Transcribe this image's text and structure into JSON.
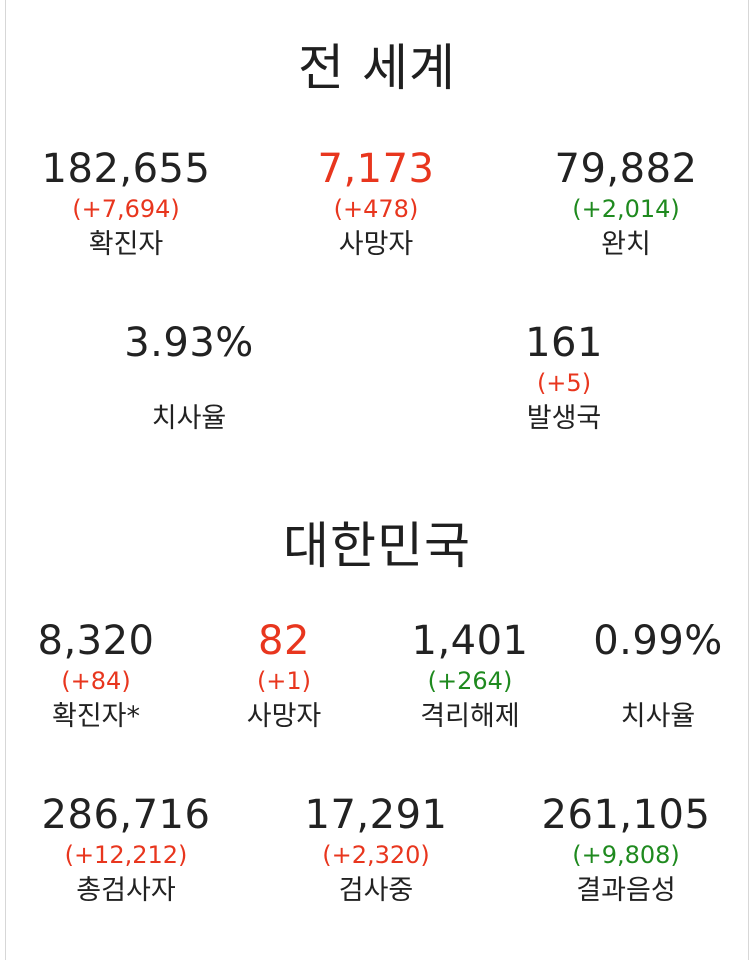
{
  "world": {
    "title": "전 세계",
    "confirmed": {
      "value": "182,655",
      "change": "(+7,694)",
      "label": "확진자"
    },
    "deaths": {
      "value": "7,173",
      "change": "(+478)",
      "label": "사망자"
    },
    "recovered": {
      "value": "79,882",
      "change": "(+2,014)",
      "label": "완치"
    },
    "fatality_rate": {
      "value": "3.93%",
      "change": "",
      "label": "치사율"
    },
    "countries": {
      "value": "161",
      "change": "(+5)",
      "label": "발생국"
    }
  },
  "korea": {
    "title": "대한민국",
    "confirmed": {
      "value": "8,320",
      "change": "(+84)",
      "label": "확진자*"
    },
    "deaths": {
      "value": "82",
      "change": "(+1)",
      "label": "사망자"
    },
    "released": {
      "value": "1,401",
      "change": "(+264)",
      "label": "격리해제"
    },
    "fatality_rate": {
      "value": "0.99%",
      "change": "",
      "label": "치사율"
    },
    "total_tested": {
      "value": "286,716",
      "change": "(+12,212)",
      "label": "총검사자"
    },
    "testing": {
      "value": "17,291",
      "change": "(+2,320)",
      "label": "검사중"
    },
    "negative": {
      "value": "261,105",
      "change": "(+9,808)",
      "label": "결과음성"
    }
  },
  "colors": {
    "increase_red": "#e8361e",
    "recovery_green": "#1f8a1f",
    "text_dark": "#222222"
  }
}
